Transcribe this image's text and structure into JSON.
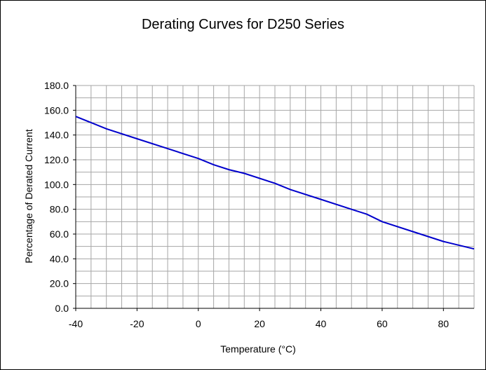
{
  "chart_data": {
    "type": "line",
    "title": "Derating Curves for D250 Series",
    "xlabel": "Temperature (°C)",
    "ylabel": "Percentage of Derated Current",
    "xlim": [
      -40,
      90
    ],
    "ylim": [
      0,
      180
    ],
    "x_ticks": [
      -40,
      -20,
      0,
      20,
      40,
      60,
      80
    ],
    "y_ticks": [
      "0.0",
      "20.0",
      "40.0",
      "60.0",
      "80.0",
      "100.0",
      "120.0",
      "140.0",
      "160.0",
      "180.0"
    ],
    "grid": true,
    "line_color": "#0000cc",
    "series": [
      {
        "x": [
          -40,
          -30,
          -20,
          -10,
          0,
          5,
          10,
          15,
          20,
          25,
          30,
          40,
          50,
          55,
          60,
          70,
          80,
          90
        ],
        "y": [
          155,
          145,
          137,
          129,
          121,
          116,
          112,
          109,
          105,
          101,
          96,
          88,
          80,
          76,
          70,
          62,
          54,
          48
        ]
      }
    ]
  }
}
